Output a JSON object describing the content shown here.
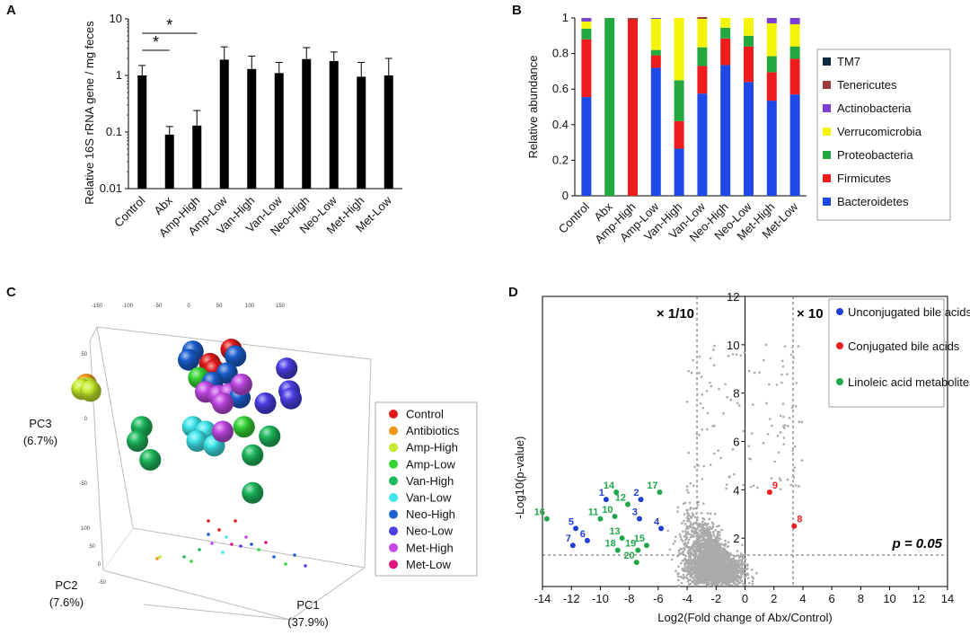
{
  "chart_data": [
    {
      "panel": "A",
      "type": "bar",
      "ylabel": "Relative 16S rRNA gene / mg feces",
      "yscale": "log",
      "ylim": [
        0.01,
        10
      ],
      "yticks": [
        "0.01",
        "0.1",
        "1",
        "10"
      ],
      "categories": [
        "Control",
        "Abx",
        "Amp-High",
        "Amp-Low",
        "Van-High",
        "Van-Low",
        "Neo-High",
        "Neo-Low",
        "Met-High",
        "Met-Low"
      ],
      "values": [
        1.0,
        0.09,
        0.13,
        1.9,
        1.3,
        1.1,
        1.95,
        1.8,
        0.95,
        1.0
      ],
      "errors": [
        1.5,
        0.125,
        0.24,
        3.2,
        2.2,
        1.7,
        3.1,
        2.6,
        1.7,
        2.0
      ],
      "significance": [
        {
          "from": "Control",
          "to": "Abx",
          "label": "*"
        },
        {
          "from": "Control",
          "to": "Amp-High",
          "label": "*"
        }
      ]
    },
    {
      "panel": "B",
      "type": "bar",
      "stacked": true,
      "ylabel": "Relative abundance",
      "ylim": [
        0,
        1
      ],
      "yticks": [
        "0",
        "0.2",
        "0.4",
        "0.6",
        "0.8",
        "1"
      ],
      "categories": [
        "Control",
        "Abx",
        "Amp-High",
        "Amp-Low",
        "Van-High",
        "Van-Low",
        "Neo-High",
        "Neo-Low",
        "Met-High",
        "Met-Low"
      ],
      "series": [
        {
          "name": "Bacteroidetes",
          "color": "#1f49e6",
          "values": [
            0.555,
            0,
            0,
            0.72,
            0.265,
            0.575,
            0.735,
            0.64,
            0.535,
            0.57
          ]
        },
        {
          "name": "Firmicutes",
          "color": "#ee1c1c",
          "values": [
            0.325,
            0,
            0.99,
            0.07,
            0.155,
            0.155,
            0.15,
            0.2,
            0.16,
            0.2
          ]
        },
        {
          "name": "Proteobacteria",
          "color": "#22a83e",
          "values": [
            0.06,
            1.0,
            0,
            0.03,
            0.23,
            0.105,
            0.06,
            0.06,
            0.09,
            0.07
          ]
        },
        {
          "name": "Verrucomicrobia",
          "color": "#f4f40a",
          "values": [
            0.04,
            0,
            0,
            0.175,
            0.35,
            0.16,
            0.055,
            0.1,
            0.185,
            0.125
          ]
        },
        {
          "name": "Actinobacteria",
          "color": "#7b3fd3",
          "values": [
            0.02,
            0,
            0,
            0.005,
            0,
            0,
            0,
            0,
            0.03,
            0.035
          ]
        },
        {
          "name": "Tenericutes",
          "color": "#9c3b3b",
          "values": [
            0,
            0,
            0.01,
            0,
            0,
            0.01,
            0,
            0,
            0,
            0
          ]
        },
        {
          "name": "TM7",
          "color": "#0f2a44",
          "values": [
            0,
            0,
            0,
            0,
            0,
            0,
            0,
            0,
            0,
            0
          ]
        }
      ],
      "legend_order": [
        "TM7",
        "Tenericutes",
        "Actinobacteria",
        "Verrucomicrobia",
        "Proteobacteria",
        "Firmicutes",
        "Bacteroidetes"
      ]
    },
    {
      "panel": "C",
      "type": "scatter",
      "subtype": "3d-pca",
      "axes": {
        "pc1": "PC1",
        "pc1_pct": "(37.9%)",
        "pc2": "PC2",
        "pc2_pct": "(7.6%)",
        "pc3": "PC3",
        "pc3_pct": "(6.7%)"
      },
      "top_ticks": [
        "-150",
        "-100",
        "-50",
        "0",
        "50",
        "100",
        "150"
      ],
      "left_ticks": [
        "50",
        "0",
        "-50"
      ],
      "depth_ticks": [
        "100",
        "50",
        "0",
        "-50"
      ],
      "groups": [
        {
          "name": "Control",
          "color": "#e01818"
        },
        {
          "name": "Antibiotics",
          "color": "#f0961e"
        },
        {
          "name": "Amp-High",
          "color": "#c6ea2c"
        },
        {
          "name": "Amp-Low",
          "color": "#37d637"
        },
        {
          "name": "Van-High",
          "color": "#1fba5e"
        },
        {
          "name": "Van-Low",
          "color": "#3fe6ea"
        },
        {
          "name": "Neo-High",
          "color": "#1c5fd0"
        },
        {
          "name": "Neo-Low",
          "color": "#4b3fe6"
        },
        {
          "name": "Met-High",
          "color": "#c24ae6"
        },
        {
          "name": "Met-Low",
          "color": "#e0167e"
        }
      ],
      "spheres": [
        {
          "g": 1,
          "x": -120,
          "y": 40,
          "z": 10
        },
        {
          "g": 2,
          "x": -118,
          "y": 36,
          "z": 8
        },
        {
          "g": 2,
          "x": -125,
          "y": 35,
          "z": 5
        },
        {
          "g": 2,
          "x": -115,
          "y": 33,
          "z": 3
        },
        {
          "g": 6,
          "x": 5,
          "y": 75,
          "z": 10
        },
        {
          "g": 0,
          "x": 50,
          "y": 77,
          "z": 12
        },
        {
          "g": 6,
          "x": 55,
          "y": 70,
          "z": 10
        },
        {
          "g": 6,
          "x": 0,
          "y": 66,
          "z": 10
        },
        {
          "g": 0,
          "x": 25,
          "y": 62,
          "z": 10
        },
        {
          "g": 0,
          "x": 30,
          "y": 55,
          "z": 10
        },
        {
          "g": 6,
          "x": 45,
          "y": 52,
          "z": 10
        },
        {
          "g": 3,
          "x": 12,
          "y": 47,
          "z": 10
        },
        {
          "g": 6,
          "x": 28,
          "y": 42,
          "z": 10
        },
        {
          "g": 7,
          "x": 115,
          "y": 57,
          "z": 10
        },
        {
          "g": 7,
          "x": 118,
          "y": 33,
          "z": 10
        },
        {
          "g": 7,
          "x": 120,
          "y": 25,
          "z": 10
        },
        {
          "g": 7,
          "x": 90,
          "y": 20,
          "z": 10
        },
        {
          "g": 8,
          "x": 20,
          "y": 32,
          "z": 10
        },
        {
          "g": 8,
          "x": 35,
          "y": 28,
          "z": 10
        },
        {
          "g": 8,
          "x": 48,
          "y": 30,
          "z": 10
        },
        {
          "g": 6,
          "x": 60,
          "y": 26,
          "z": 10
        },
        {
          "g": 8,
          "x": 62,
          "y": 40,
          "z": 10
        },
        {
          "g": 8,
          "x": 40,
          "y": 20,
          "z": 10
        },
        {
          "g": 4,
          "x": -55,
          "y": -5,
          "z": 10
        },
        {
          "g": 4,
          "x": -60,
          "y": -20,
          "z": 10
        },
        {
          "g": 4,
          "x": -45,
          "y": -40,
          "z": 10
        },
        {
          "g": 5,
          "x": 5,
          "y": -5,
          "z": 10
        },
        {
          "g": 5,
          "x": 20,
          "y": -10,
          "z": 10
        },
        {
          "g": 5,
          "x": 10,
          "y": -20,
          "z": 10
        },
        {
          "g": 5,
          "x": 30,
          "y": -25,
          "z": 10
        },
        {
          "g": 8,
          "x": 40,
          "y": -10,
          "z": 10
        },
        {
          "g": 3,
          "x": 65,
          "y": -5,
          "z": 10
        },
        {
          "g": 4,
          "x": 95,
          "y": -15,
          "z": 10
        },
        {
          "g": 4,
          "x": 75,
          "y": -35,
          "z": 10
        },
        {
          "g": 4,
          "x": 75,
          "y": -75,
          "z": 10
        }
      ]
    },
    {
      "panel": "D",
      "type": "scatter",
      "subtype": "volcano",
      "xlabel": "Log2(Fold change of Abx/Control)",
      "ylabel": "-Log10(p-value)",
      "xlim": [
        -14,
        14
      ],
      "ylim": [
        0,
        12
      ],
      "xticks": [
        "-14",
        "-12",
        "-10",
        "-8",
        "-6",
        "-4",
        "-2",
        "0",
        "2",
        "4",
        "6",
        "8",
        "10",
        "12",
        "14"
      ],
      "yticks": [
        "2",
        "4",
        "6",
        "8",
        "10",
        "12"
      ],
      "thresholds": {
        "fold_left": -3.32,
        "fold_right": 3.32,
        "fold_left_label": "× 1/10",
        "fold_right_label": "× 10",
        "p_line": 1.3,
        "p_label": "p = 0.05"
      },
      "legend": [
        {
          "label": "Unconjugated bile acids",
          "color": "#1f3fd6"
        },
        {
          "label": "Conjugated bile acids",
          "color": "#ee1c1c"
        },
        {
          "label": "Linoleic acid metabolites",
          "color": "#1fa84a"
        }
      ],
      "points": [
        {
          "id": "1",
          "x": -9.6,
          "y": 3.6,
          "group": 0
        },
        {
          "id": "2",
          "x": -7.2,
          "y": 3.6,
          "group": 0
        },
        {
          "id": "3",
          "x": -7.3,
          "y": 2.8,
          "group": 0
        },
        {
          "id": "4",
          "x": -5.8,
          "y": 2.4,
          "group": 0
        },
        {
          "id": "5",
          "x": -11.7,
          "y": 2.4,
          "group": 0
        },
        {
          "id": "6",
          "x": -10.9,
          "y": 1.9,
          "group": 0
        },
        {
          "id": "7",
          "x": -11.9,
          "y": 1.7,
          "group": 0
        },
        {
          "id": "8",
          "x": 3.4,
          "y": 2.5,
          "group": 1
        },
        {
          "id": "9",
          "x": 1.7,
          "y": 3.9,
          "group": 1
        },
        {
          "id": "10",
          "x": -9.0,
          "y": 2.9,
          "group": 2
        },
        {
          "id": "11",
          "x": -10.0,
          "y": 2.8,
          "group": 2
        },
        {
          "id": "12",
          "x": -8.1,
          "y": 3.4,
          "group": 2
        },
        {
          "id": "13",
          "x": -8.5,
          "y": 2.0,
          "group": 2
        },
        {
          "id": "14",
          "x": -8.9,
          "y": 3.9,
          "group": 2
        },
        {
          "id": "15",
          "x": -6.8,
          "y": 1.7,
          "group": 2
        },
        {
          "id": "16",
          "x": -13.7,
          "y": 2.8,
          "group": 2
        },
        {
          "id": "17",
          "x": -5.9,
          "y": 3.9,
          "group": 2
        },
        {
          "id": "18",
          "x": -8.8,
          "y": 1.5,
          "group": 2
        },
        {
          "id": "19",
          "x": -7.4,
          "y": 1.5,
          "group": 2
        },
        {
          "id": "20",
          "x": -7.5,
          "y": 1.0,
          "group": 2
        }
      ]
    }
  ]
}
